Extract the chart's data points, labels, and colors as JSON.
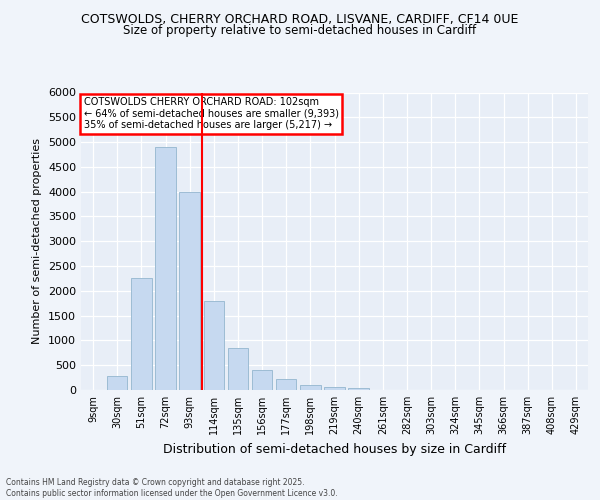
{
  "title1": "COTSWOLDS, CHERRY ORCHARD ROAD, LISVANE, CARDIFF, CF14 0UE",
  "title2": "Size of property relative to semi-detached houses in Cardiff",
  "xlabel": "Distribution of semi-detached houses by size in Cardiff",
  "ylabel": "Number of semi-detached properties",
  "categories": [
    "9sqm",
    "30sqm",
    "51sqm",
    "72sqm",
    "93sqm",
    "114sqm",
    "135sqm",
    "156sqm",
    "177sqm",
    "198sqm",
    "219sqm",
    "240sqm",
    "261sqm",
    "282sqm",
    "303sqm",
    "324sqm",
    "345sqm",
    "366sqm",
    "387sqm",
    "408sqm",
    "429sqm"
  ],
  "values": [
    10,
    280,
    2250,
    4900,
    4000,
    1800,
    850,
    400,
    220,
    100,
    70,
    50,
    10,
    5,
    3,
    2,
    1,
    1,
    0,
    0,
    0
  ],
  "bar_color": "#c6d9f0",
  "bar_edge_color": "#9dbcd4",
  "vline_color": "red",
  "vline_pos": 4.5,
  "ylim": [
    0,
    6000
  ],
  "yticks": [
    0,
    500,
    1000,
    1500,
    2000,
    2500,
    3000,
    3500,
    4000,
    4500,
    5000,
    5500,
    6000
  ],
  "annotation_title": "COTSWOLDS CHERRY ORCHARD ROAD: 102sqm",
  "annotation_line1": "← 64% of semi-detached houses are smaller (9,393)",
  "annotation_line2": "35% of semi-detached houses are larger (5,217) →",
  "bg_color": "#e8eef7",
  "fig_bg_color": "#f0f4fa",
  "footer1": "Contains HM Land Registry data © Crown copyright and database right 2025.",
  "footer2": "Contains public sector information licensed under the Open Government Licence v3.0.",
  "title1_fontsize": 9,
  "title2_fontsize": 8.5,
  "ylabel_fontsize": 8,
  "xlabel_fontsize": 9
}
